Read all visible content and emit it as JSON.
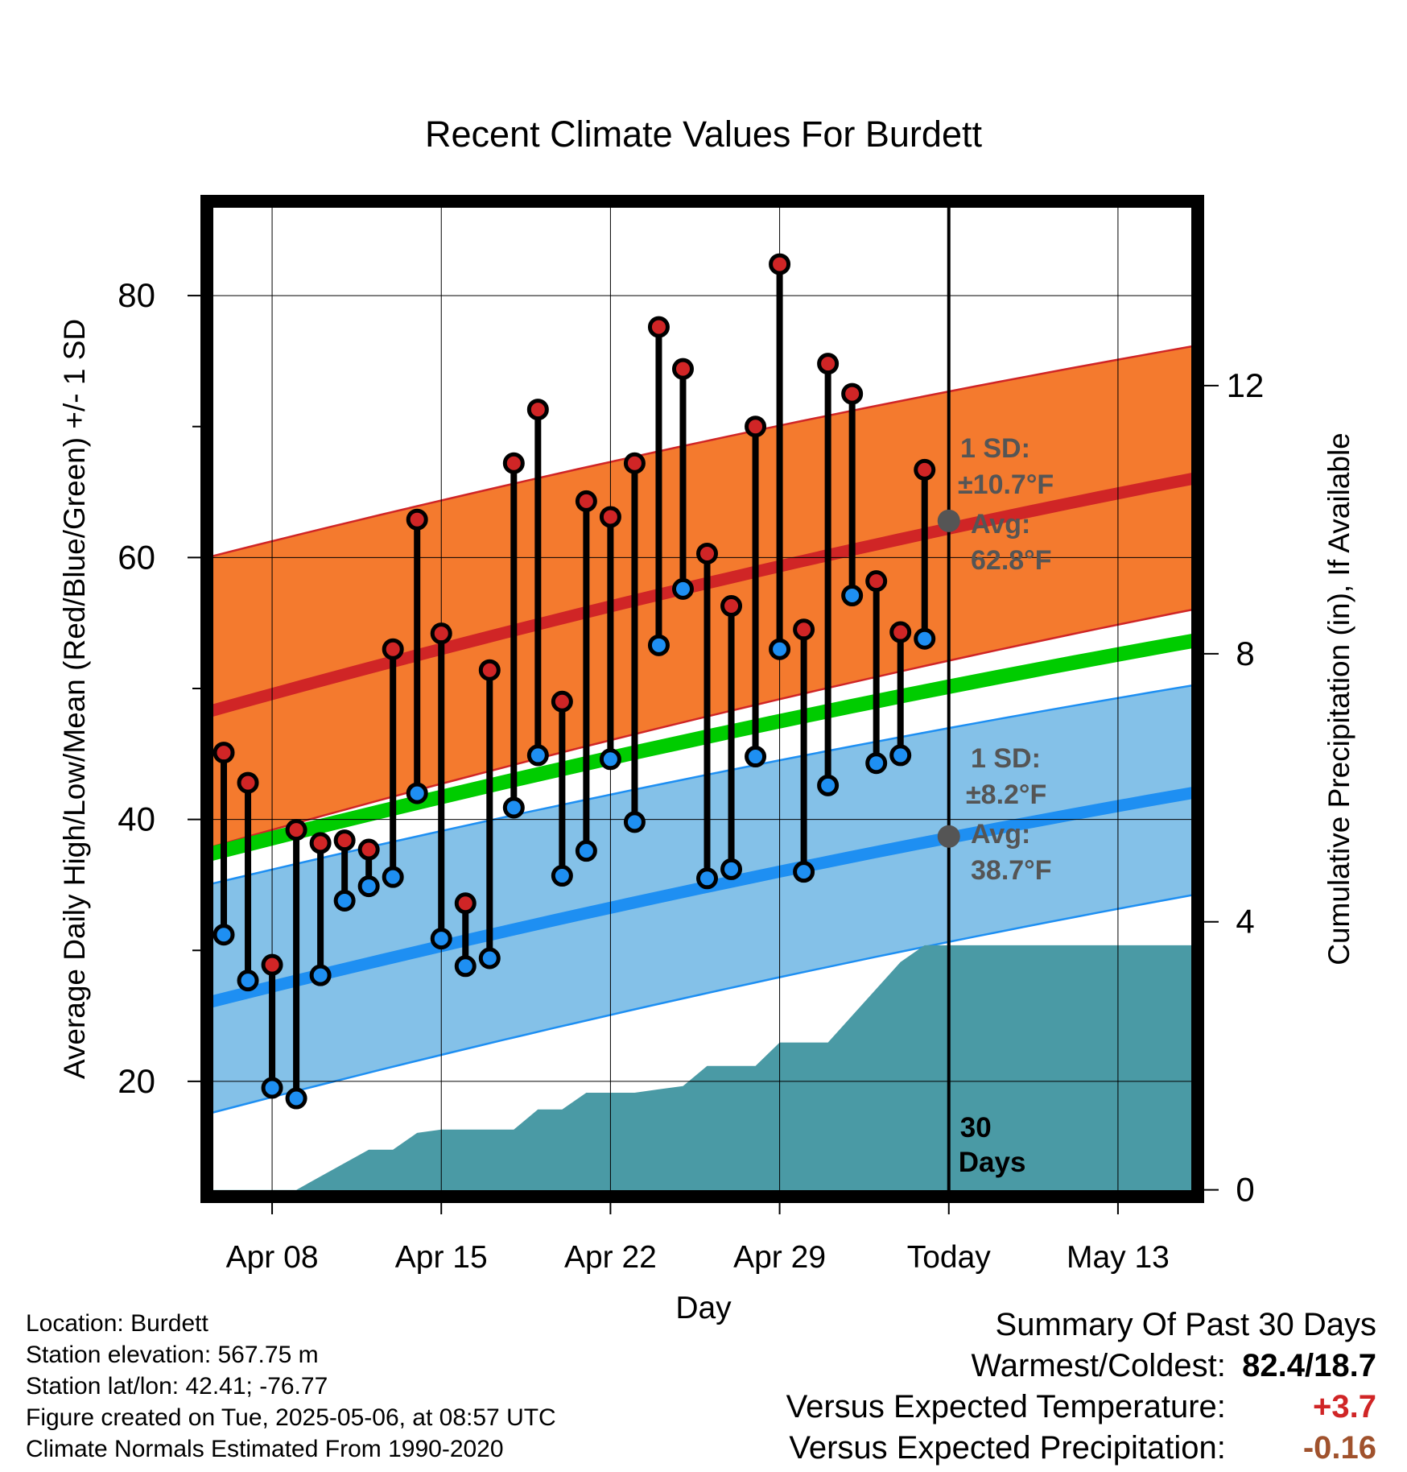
{
  "chart_data": {
    "type": "line",
    "title": "Recent Climate Values For Burdett",
    "xlabel": "Day",
    "ylabel": "Average Daily High/Low/Mean (Red/Blue/Green) +/- 1 SD",
    "y2label": "Cumulative Precipitation (in), If Available",
    "x_ticks": [
      {
        "day": 2,
        "label": "Apr 08"
      },
      {
        "day": 9,
        "label": "Apr 15"
      },
      {
        "day": 16,
        "label": "Apr 22"
      },
      {
        "day": 23,
        "label": "Apr 29"
      },
      {
        "day": 30,
        "label": "Today"
      },
      {
        "day": 37,
        "label": "May 13"
      }
    ],
    "xlim": [
      -0.7,
      40.3
    ],
    "ylim": [
      11.2,
      87.2
    ],
    "y_ticks": [
      20,
      40,
      60,
      80
    ],
    "y2lim": [
      -0.1,
      14.75
    ],
    "y2_ticks": [
      0,
      4,
      8,
      12
    ],
    "today_day": 30,
    "today_label_line1": "30",
    "today_label_line2": "Days",
    "daily_observations": [
      {
        "day": 0,
        "high": 45.1,
        "low": 31.2
      },
      {
        "day": 1,
        "high": 42.8,
        "low": 27.7
      },
      {
        "day": 2,
        "high": 28.9,
        "low": 19.5
      },
      {
        "day": 3,
        "high": 39.2,
        "low": 18.7
      },
      {
        "day": 4,
        "high": 38.2,
        "low": 28.1
      },
      {
        "day": 5,
        "high": 38.4,
        "low": 33.8
      },
      {
        "day": 6,
        "high": 37.7,
        "low": 34.9
      },
      {
        "day": 7,
        "high": 53.0,
        "low": 35.6
      },
      {
        "day": 8,
        "high": 62.9,
        "low": 42.0
      },
      {
        "day": 9,
        "high": 54.2,
        "low": 30.9
      },
      {
        "day": 10,
        "high": 33.6,
        "low": 28.8
      },
      {
        "day": 11,
        "high": 51.4,
        "low": 29.4
      },
      {
        "day": 12,
        "high": 67.2,
        "low": 40.9
      },
      {
        "day": 13,
        "high": 71.3,
        "low": 44.9
      },
      {
        "day": 14,
        "high": 49.0,
        "low": 35.7
      },
      {
        "day": 15,
        "high": 64.3,
        "low": 37.6
      },
      {
        "day": 16,
        "high": 63.1,
        "low": 44.6
      },
      {
        "day": 17,
        "high": 67.2,
        "low": 39.8
      },
      {
        "day": 18,
        "high": 77.6,
        "low": 53.3
      },
      {
        "day": 19,
        "high": 74.4,
        "low": 57.6
      },
      {
        "day": 20,
        "high": 60.3,
        "low": 35.5
      },
      {
        "day": 21,
        "high": 56.3,
        "low": 36.2
      },
      {
        "day": 22,
        "high": 70.0,
        "low": 44.8
      },
      {
        "day": 23,
        "high": 82.4,
        "low": 53.0
      },
      {
        "day": 24,
        "high": 54.5,
        "low": 36.0
      },
      {
        "day": 25,
        "high": 74.8,
        "low": 42.6
      },
      {
        "day": 26,
        "high": 72.5,
        "low": 57.1
      },
      {
        "day": 27,
        "high": 58.2,
        "low": 44.3
      },
      {
        "day": 28,
        "high": 54.3,
        "low": 44.9
      },
      {
        "day": 29,
        "high": 66.7,
        "low": 53.8
      }
    ],
    "normals": {
      "days": [
        -0.7,
        40.3
      ],
      "high_mean": [
        48.2,
        66.1
      ],
      "high_upper": [
        60.0,
        76.2
      ],
      "high_lower": [
        37.8,
        56.1
      ],
      "mean": [
        37.3,
        53.7
      ],
      "low_mean": [
        26.0,
        42.1
      ],
      "low_upper": [
        35.0,
        50.3
      ],
      "low_lower": [
        17.5,
        34.3
      ]
    },
    "precipitation": {
      "days": [
        -0.7,
        3,
        4,
        5,
        6,
        7,
        8,
        9,
        10,
        11,
        12,
        13,
        14,
        15,
        16,
        17,
        18,
        19,
        20,
        21,
        22,
        23,
        24,
        25,
        26,
        27,
        28,
        29,
        30,
        40.3
      ],
      "cumulative_in": [
        0,
        0,
        0.2,
        0.4,
        0.6,
        0.6,
        0.85,
        0.9,
        0.9,
        0.9,
        0.9,
        1.2,
        1.2,
        1.45,
        1.45,
        1.45,
        1.5,
        1.55,
        1.85,
        1.85,
        1.85,
        2.2,
        2.2,
        2.2,
        2.6,
        3.0,
        3.4,
        3.65,
        3.65,
        3.65
      ]
    },
    "annotations": {
      "high_sd_label": "1 SD:",
      "high_sd_value": "±10.7°F",
      "high_avg_label": "Avg:",
      "high_avg_value": "62.8°F",
      "high_avg": 62.8,
      "low_sd_label": "1 SD:",
      "low_sd_value": "±8.2°F",
      "low_avg_label": "Avg:",
      "low_avg_value": "38.7°F",
      "low_avg": 38.7
    },
    "colors": {
      "high_band": "#f47a2e",
      "high_line": "#d02526",
      "low_band": "#84c1e8",
      "low_line": "#1e8ff2",
      "mean_line": "#00cc00",
      "precip": "#4a9aa5",
      "high_dot": "#d02526",
      "low_dot": "#1e8ff2",
      "annotation": "#555555"
    },
    "grid": true
  },
  "footer": {
    "location": "Location: Burdett",
    "elevation": "Station elevation: 567.75 m",
    "latlon": "Station lat/lon: 42.41; -76.77",
    "created": "Figure created on Tue, 2025-05-06, at 08:57 UTC",
    "normals": "Climate Normals Estimated From 1990-2020"
  },
  "summary": {
    "title": "Summary Of Past 30 Days",
    "warmest_label": "Warmest/Coldest:",
    "warmest_value": "82.4/18.7",
    "temp_label": "Versus Expected Temperature:",
    "temp_value": "+3.7",
    "temp_color": "#d02526",
    "precip_label": "Versus Expected Precipitation:",
    "precip_value": "-0.16",
    "precip_color": "#a0522d"
  }
}
